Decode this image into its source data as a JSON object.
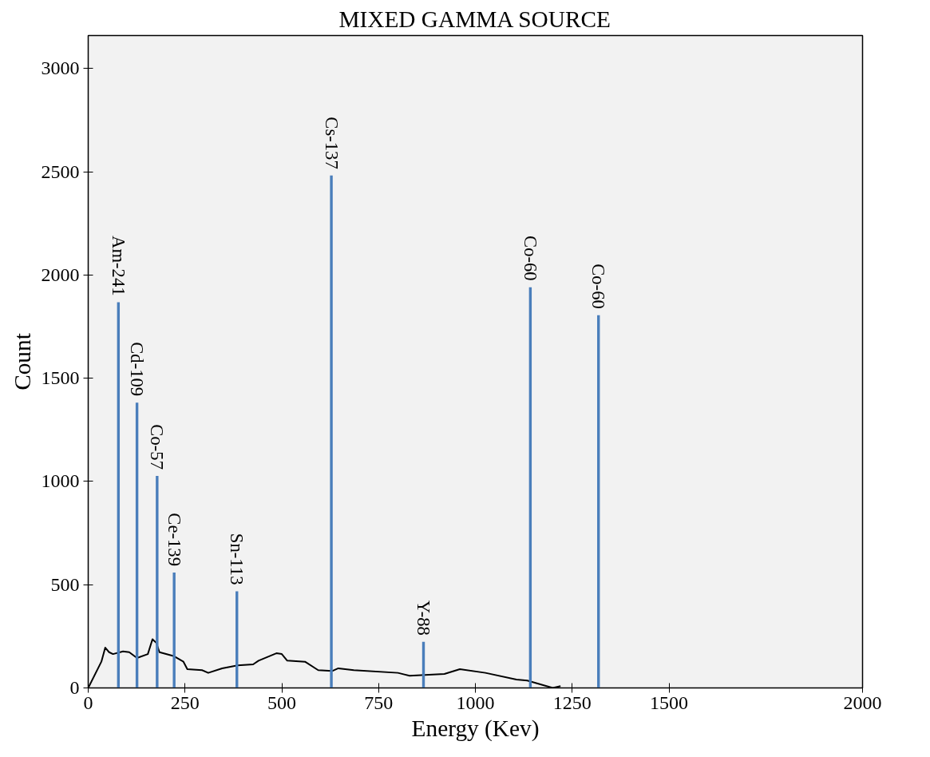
{
  "chart_data": {
    "type": "line",
    "title": "MIXED GAMMA SOURCE",
    "xlabel": "Energy (Kev)",
    "ylabel": "Count",
    "xlim": [
      0,
      2000
    ],
    "xticks": [
      0,
      250,
      500,
      750,
      1000,
      1250,
      1500,
      2000
    ],
    "ylim": [
      0,
      3160
    ],
    "yticks": [
      0,
      500,
      1000,
      1500,
      2000,
      2500,
      3000
    ],
    "grid": false,
    "series": [
      {
        "color": "#000000",
        "x": [
          0,
          34,
          44,
          54,
          64,
          90,
          106,
          126,
          154,
          166,
          176,
          184,
          220,
          246,
          256,
          294,
          310,
          346,
          386,
          426,
          440,
          486,
          500,
          514,
          560,
          594,
          630,
          646,
          686,
          800,
          830,
          920,
          960,
          1026,
          1106,
          1134,
          1200,
          1220
        ],
        "values": [
          0,
          127,
          195,
          173,
          164,
          177,
          173,
          145,
          164,
          236,
          218,
          173,
          155,
          127,
          91,
          86,
          73,
          95,
          109,
          114,
          132,
          168,
          164,
          132,
          127,
          86,
          82,
          95,
          86,
          73,
          59,
          68,
          91,
          73,
          41,
          36,
          0,
          9
        ]
      },
      {
        "type": "bar",
        "color": "#4a7ebb",
        "x": [
          78,
          126,
          178,
          222,
          384,
          628,
          866,
          1142,
          1318
        ],
        "values": [
          1868,
          1382,
          1027,
          559,
          468,
          2482,
          223,
          1941,
          1805
        ]
      }
    ],
    "annotations": [
      {
        "text": "Am-241",
        "x": 78,
        "y": 1868
      },
      {
        "text": "Cd-109",
        "x": 126,
        "y": 1382
      },
      {
        "text": "Co-57",
        "x": 178,
        "y": 1027
      },
      {
        "text": "Ce-139",
        "x": 222,
        "y": 559
      },
      {
        "text": "Sn-113",
        "x": 384,
        "y": 468
      },
      {
        "text": "Cs-137",
        "x": 628,
        "y": 2482
      },
      {
        "text": "Y-88",
        "x": 866,
        "y": 223
      },
      {
        "text": "Co-60",
        "x": 1142,
        "y": 1941
      },
      {
        "text": "Co-60",
        "x": 1318,
        "y": 1805
      }
    ]
  }
}
